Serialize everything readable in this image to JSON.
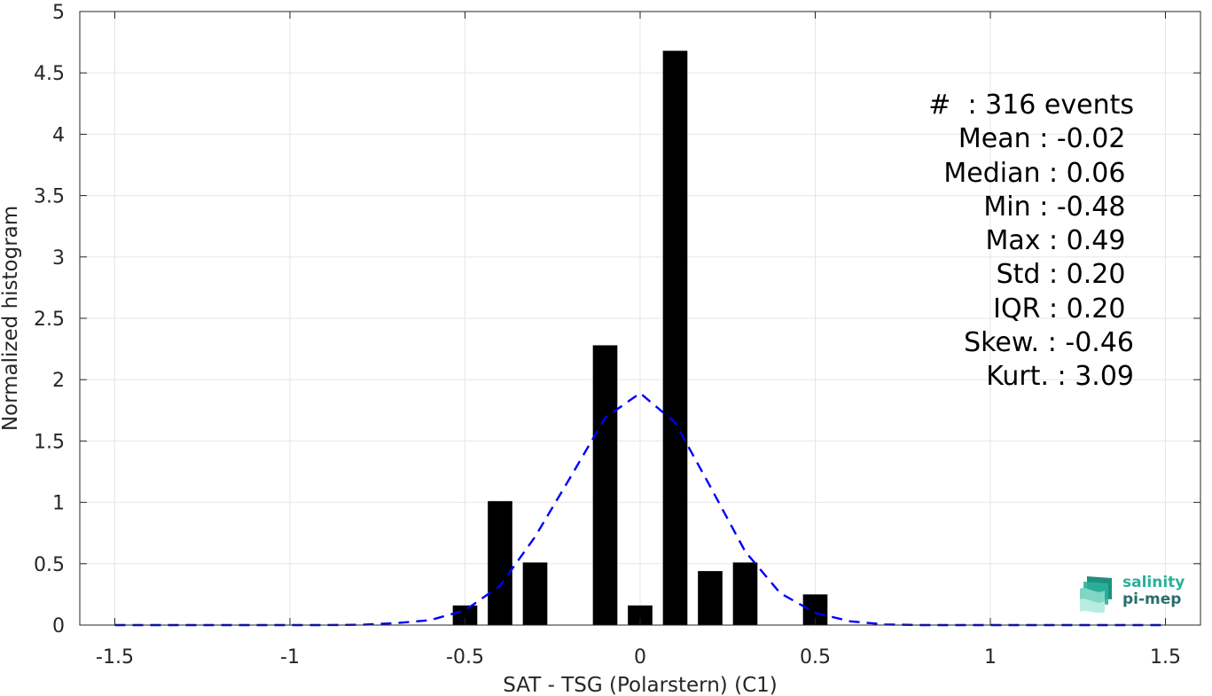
{
  "chart_data": {
    "type": "bar",
    "xlabel": "SAT - TSG (Polarstern) (C1)",
    "ylabel": "Normalized histogram",
    "xlim": [
      -1.6,
      1.6
    ],
    "ylim": [
      0,
      5
    ],
    "x_ticks": [
      "-1.5",
      "-1",
      "-0.5",
      "0",
      "0.5",
      "1",
      "1.5"
    ],
    "y_ticks": [
      "0",
      "0.5",
      "1",
      "1.5",
      "2",
      "2.5",
      "3",
      "3.5",
      "4",
      "4.5",
      "5"
    ],
    "grid": true,
    "bar_width": 0.07,
    "bars": [
      {
        "x": -0.5,
        "y": 0.16
      },
      {
        "x": -0.4,
        "y": 1.01
      },
      {
        "x": -0.3,
        "y": 0.51
      },
      {
        "x": -0.1,
        "y": 2.28
      },
      {
        "x": 0.0,
        "y": 0.16
      },
      {
        "x": 0.1,
        "y": 4.68
      },
      {
        "x": 0.2,
        "y": 0.44
      },
      {
        "x": 0.3,
        "y": 0.51
      },
      {
        "x": 0.5,
        "y": 0.25
      }
    ],
    "fit_curve": {
      "style": "dashed",
      "color": "#0000ff",
      "x": [
        -1.5,
        -1.4,
        -1.3,
        -1.2,
        -1.1,
        -1.0,
        -0.9,
        -0.8,
        -0.7,
        -0.6,
        -0.5,
        -0.4,
        -0.3,
        -0.2,
        -0.1,
        0.0,
        0.1,
        0.2,
        0.3,
        0.4,
        0.5,
        0.6,
        0.7,
        0.8,
        0.9,
        1.0,
        1.1,
        1.2,
        1.3,
        1.4,
        1.5
      ],
      "y": [
        0,
        0,
        0,
        0,
        0,
        0,
        0,
        0.002,
        0.015,
        0.04,
        0.12,
        0.32,
        0.72,
        1.2,
        1.69,
        1.89,
        1.65,
        1.13,
        0.6,
        0.26,
        0.1,
        0.03,
        0.005,
        0,
        0,
        0,
        0,
        0,
        0,
        0,
        0
      ]
    }
  },
  "stats": {
    "lines": [
      "#  : 316 events",
      "Mean : -0.02 ",
      "Median : 0.06 ",
      "Min : -0.48 ",
      "Max : 0.49 ",
      "Std : 0.20 ",
      "IQR : 0.20 ",
      "Skew. : -0.46",
      "Kurt. : 3.09"
    ]
  },
  "logo": {
    "line1": "salinity",
    "line2": "pi-mep",
    "colors": [
      "#2ab09a",
      "#2a6f6a"
    ]
  }
}
